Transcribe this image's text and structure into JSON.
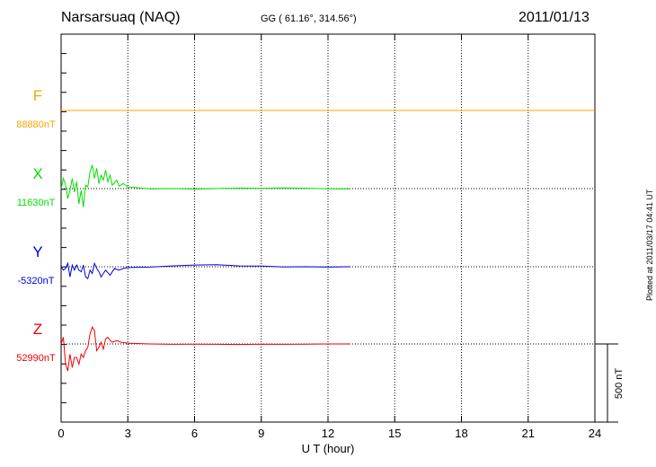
{
  "header": {
    "station": "Narsarsuaq (NAQ)",
    "coords": "GG ( 61.16°, 314.56°)",
    "date": "2011/01/13"
  },
  "stamp": "Plotted at 2011/03/17 04:41 UT",
  "colors": {
    "F": "#f5a800",
    "X": "#00e000",
    "Y": "#0000dd",
    "Z": "#ee0000"
  },
  "chart_data": {
    "type": "line",
    "title": "Narsarsuaq (NAQ)",
    "xlabel": "U T (hour)",
    "ylabel": "",
    "xlim": [
      0,
      24
    ],
    "xticks": [
      0,
      3,
      6,
      9,
      12,
      15,
      18,
      21,
      24
    ],
    "scale_label": "500 nT",
    "scale_nT": 500,
    "series": [
      {
        "name": "F",
        "base_label": "88880nT",
        "points": [
          [
            0,
            0
          ],
          [
            24,
            0
          ]
        ]
      },
      {
        "name": "X",
        "base_label": "11630nT",
        "points": [
          [
            0,
            -2
          ],
          [
            0.1,
            60
          ],
          [
            0.2,
            20
          ],
          [
            0.3,
            -60
          ],
          [
            0.4,
            -10
          ],
          [
            0.5,
            60
          ],
          [
            0.6,
            -20
          ],
          [
            0.7,
            40
          ],
          [
            0.8,
            -90
          ],
          [
            0.9,
            -10
          ],
          [
            1.0,
            -110
          ],
          [
            1.1,
            20
          ],
          [
            1.2,
            10
          ],
          [
            1.3,
            100
          ],
          [
            1.4,
            140
          ],
          [
            1.5,
            60
          ],
          [
            1.6,
            120
          ],
          [
            1.7,
            30
          ],
          [
            1.8,
            80
          ],
          [
            1.9,
            50
          ],
          [
            2.0,
            110
          ],
          [
            2.1,
            40
          ],
          [
            2.2,
            80
          ],
          [
            2.3,
            20
          ],
          [
            2.5,
            50
          ],
          [
            2.6,
            15
          ],
          [
            2.8,
            30
          ],
          [
            3.0,
            10
          ],
          [
            3.5,
            5
          ],
          [
            4,
            -2
          ],
          [
            5,
            0
          ],
          [
            6,
            -3
          ],
          [
            7,
            0
          ],
          [
            8,
            3
          ],
          [
            9,
            1
          ],
          [
            10,
            4
          ],
          [
            11,
            2
          ],
          [
            12,
            -1
          ],
          [
            13,
            -2
          ]
        ]
      },
      {
        "name": "Y",
        "base_label": "-5320nT",
        "points": [
          [
            0,
            0
          ],
          [
            0.1,
            -20
          ],
          [
            0.2,
            -10
          ],
          [
            0.3,
            20
          ],
          [
            0.4,
            -60
          ],
          [
            0.5,
            10
          ],
          [
            0.6,
            -20
          ],
          [
            0.7,
            10
          ],
          [
            0.8,
            -20
          ],
          [
            0.9,
            -30
          ],
          [
            1.0,
            10
          ],
          [
            1.1,
            -60
          ],
          [
            1.2,
            -70
          ],
          [
            1.3,
            -20
          ],
          [
            1.4,
            -40
          ],
          [
            1.5,
            20
          ],
          [
            1.6,
            -10
          ],
          [
            1.7,
            -30
          ],
          [
            1.8,
            -60
          ],
          [
            1.9,
            -40
          ],
          [
            2.0,
            -20
          ],
          [
            2.2,
            -50
          ],
          [
            2.4,
            -10
          ],
          [
            2.6,
            -20
          ],
          [
            2.8,
            -10
          ],
          [
            3,
            -5
          ],
          [
            4,
            -2
          ],
          [
            5,
            5
          ],
          [
            6,
            10
          ],
          [
            7,
            12
          ],
          [
            8,
            5
          ],
          [
            9,
            4
          ],
          [
            10,
            -1
          ],
          [
            11,
            0
          ],
          [
            12,
            -2
          ],
          [
            13,
            0
          ]
        ]
      },
      {
        "name": "Z",
        "base_label": "52990nT",
        "points": [
          [
            0,
            0
          ],
          [
            0.1,
            40
          ],
          [
            0.2,
            -120
          ],
          [
            0.3,
            -160
          ],
          [
            0.4,
            -60
          ],
          [
            0.5,
            -140
          ],
          [
            0.6,
            -80
          ],
          [
            0.7,
            -80
          ],
          [
            0.8,
            -120
          ],
          [
            0.9,
            -60
          ],
          [
            1.0,
            -80
          ],
          [
            1.1,
            -40
          ],
          [
            1.2,
            -20
          ],
          [
            1.3,
            60
          ],
          [
            1.4,
            100
          ],
          [
            1.5,
            80
          ],
          [
            1.6,
            -40
          ],
          [
            1.7,
            -20
          ],
          [
            1.8,
            10
          ],
          [
            1.9,
            -30
          ],
          [
            2.0,
            30
          ],
          [
            2.1,
            40
          ],
          [
            2.2,
            20
          ],
          [
            2.3,
            10
          ],
          [
            2.5,
            20
          ],
          [
            2.7,
            10
          ],
          [
            3,
            5
          ],
          [
            4,
            0
          ],
          [
            5,
            -2
          ],
          [
            6,
            -1
          ],
          [
            7,
            -2
          ],
          [
            8,
            -3
          ],
          [
            9,
            -1
          ],
          [
            10,
            -2
          ],
          [
            11,
            -1
          ],
          [
            12,
            0
          ],
          [
            13,
            0
          ]
        ]
      }
    ]
  }
}
